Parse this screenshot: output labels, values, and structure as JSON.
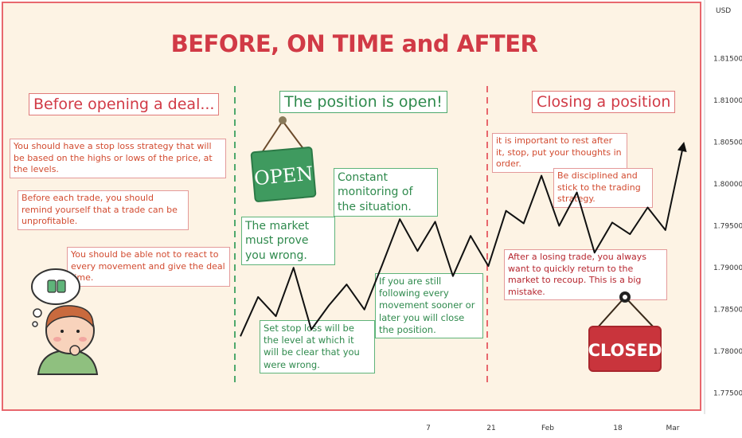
{
  "title": "BEFORE, ON TIME and AFTER",
  "sections": {
    "before": "Before opening a deal...",
    "during": "The position is open!",
    "after": "Closing a position"
  },
  "notes": {
    "before_1": "You should have a stop loss strategy that will be based on the highs or lows of the price, at the levels.",
    "before_2": "Before each trade, you should remind yourself that a trade can be unprofitable.",
    "before_3": "You should be able not to react to every movement and give the deal time.",
    "during_1": "The market must prove you wrong.",
    "during_2": "Set stop loss will be the level at which it will be clear that you were wrong.",
    "during_3": "Constant monitoring of the situation.",
    "during_4": "If you are still following every movement sooner or later you will close the position.",
    "after_1": "it is important to rest after it, stop, put your thoughts in order.",
    "after_2": "Be disciplined and stick to the trading strategy.",
    "after_3": "After a losing trade, you always want to quickly return to the market to recoup. This is a big mistake."
  },
  "signs": {
    "open": "OPEN",
    "closed": "CLOSED"
  },
  "icons": [
    "thinking-person-icon",
    "thought-bubble-icon",
    "open-sign-icon",
    "closed-sign-icon"
  ],
  "colors": {
    "red": "#d13a46",
    "green": "#2f8a4d",
    "background": "#fdf3e4"
  },
  "chart_data": {
    "type": "line",
    "y_unit": "USD",
    "y_ticks": [
      "1.81500",
      "1.81000",
      "1.80500",
      "1.80000",
      "1.79500",
      "1.79000",
      "1.78500",
      "1.78000",
      "1.77500"
    ],
    "x_ticks": [
      "7",
      "21",
      "Feb",
      "18",
      "Mar"
    ],
    "ylim": [
      1.7725,
      1.822
    ],
    "series": [
      {
        "values": [
          1.7818,
          1.7865,
          1.7842,
          1.79,
          1.7826,
          1.7855,
          1.788,
          1.785,
          1.7903,
          1.7958,
          1.792,
          1.7955,
          1.789,
          1.7938,
          1.7902,
          1.7968,
          1.7953,
          1.801,
          1.795,
          1.799,
          1.7918,
          1.7954,
          1.794,
          1.7972,
          1.7945,
          1.8045
        ]
      }
    ]
  }
}
